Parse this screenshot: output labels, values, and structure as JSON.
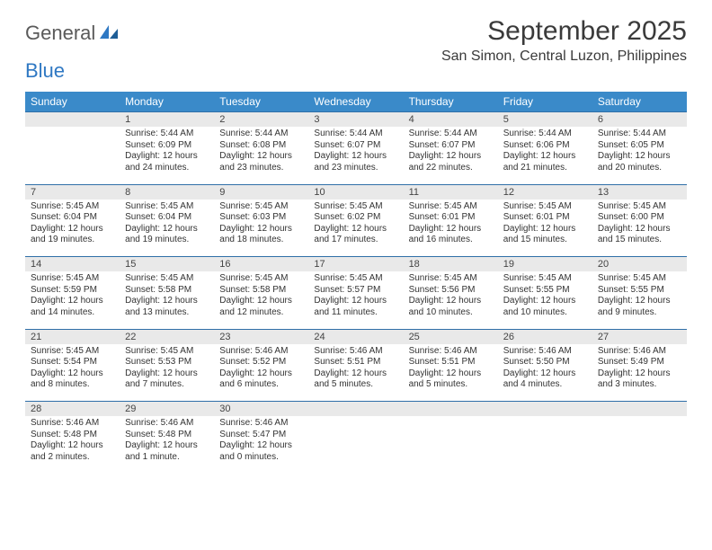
{
  "brand": {
    "general": "General",
    "blue": "Blue"
  },
  "title": "September 2025",
  "location": "San Simon, Central Luzon, Philippines",
  "colors": {
    "header_bg": "#3a8ac9",
    "header_text": "#ffffff",
    "daynum_bg": "#e9e9e9",
    "daynum_border": "#2f6fa8",
    "logo_blue": "#2f78c3",
    "logo_gray": "#5a5a5a",
    "page_bg": "#ffffff",
    "body_text": "#333333"
  },
  "day_headers": [
    "Sunday",
    "Monday",
    "Tuesday",
    "Wednesday",
    "Thursday",
    "Friday",
    "Saturday"
  ],
  "weeks": [
    {
      "days": [
        {
          "n": "",
          "lines": [
            "",
            "",
            "",
            ""
          ]
        },
        {
          "n": "1",
          "lines": [
            "Sunrise: 5:44 AM",
            "Sunset: 6:09 PM",
            "Daylight: 12 hours",
            "and 24 minutes."
          ]
        },
        {
          "n": "2",
          "lines": [
            "Sunrise: 5:44 AM",
            "Sunset: 6:08 PM",
            "Daylight: 12 hours",
            "and 23 minutes."
          ]
        },
        {
          "n": "3",
          "lines": [
            "Sunrise: 5:44 AM",
            "Sunset: 6:07 PM",
            "Daylight: 12 hours",
            "and 23 minutes."
          ]
        },
        {
          "n": "4",
          "lines": [
            "Sunrise: 5:44 AM",
            "Sunset: 6:07 PM",
            "Daylight: 12 hours",
            "and 22 minutes."
          ]
        },
        {
          "n": "5",
          "lines": [
            "Sunrise: 5:44 AM",
            "Sunset: 6:06 PM",
            "Daylight: 12 hours",
            "and 21 minutes."
          ]
        },
        {
          "n": "6",
          "lines": [
            "Sunrise: 5:44 AM",
            "Sunset: 6:05 PM",
            "Daylight: 12 hours",
            "and 20 minutes."
          ]
        }
      ]
    },
    {
      "days": [
        {
          "n": "7",
          "lines": [
            "Sunrise: 5:45 AM",
            "Sunset: 6:04 PM",
            "Daylight: 12 hours",
            "and 19 minutes."
          ]
        },
        {
          "n": "8",
          "lines": [
            "Sunrise: 5:45 AM",
            "Sunset: 6:04 PM",
            "Daylight: 12 hours",
            "and 19 minutes."
          ]
        },
        {
          "n": "9",
          "lines": [
            "Sunrise: 5:45 AM",
            "Sunset: 6:03 PM",
            "Daylight: 12 hours",
            "and 18 minutes."
          ]
        },
        {
          "n": "10",
          "lines": [
            "Sunrise: 5:45 AM",
            "Sunset: 6:02 PM",
            "Daylight: 12 hours",
            "and 17 minutes."
          ]
        },
        {
          "n": "11",
          "lines": [
            "Sunrise: 5:45 AM",
            "Sunset: 6:01 PM",
            "Daylight: 12 hours",
            "and 16 minutes."
          ]
        },
        {
          "n": "12",
          "lines": [
            "Sunrise: 5:45 AM",
            "Sunset: 6:01 PM",
            "Daylight: 12 hours",
            "and 15 minutes."
          ]
        },
        {
          "n": "13",
          "lines": [
            "Sunrise: 5:45 AM",
            "Sunset: 6:00 PM",
            "Daylight: 12 hours",
            "and 15 minutes."
          ]
        }
      ]
    },
    {
      "days": [
        {
          "n": "14",
          "lines": [
            "Sunrise: 5:45 AM",
            "Sunset: 5:59 PM",
            "Daylight: 12 hours",
            "and 14 minutes."
          ]
        },
        {
          "n": "15",
          "lines": [
            "Sunrise: 5:45 AM",
            "Sunset: 5:58 PM",
            "Daylight: 12 hours",
            "and 13 minutes."
          ]
        },
        {
          "n": "16",
          "lines": [
            "Sunrise: 5:45 AM",
            "Sunset: 5:58 PM",
            "Daylight: 12 hours",
            "and 12 minutes."
          ]
        },
        {
          "n": "17",
          "lines": [
            "Sunrise: 5:45 AM",
            "Sunset: 5:57 PM",
            "Daylight: 12 hours",
            "and 11 minutes."
          ]
        },
        {
          "n": "18",
          "lines": [
            "Sunrise: 5:45 AM",
            "Sunset: 5:56 PM",
            "Daylight: 12 hours",
            "and 10 minutes."
          ]
        },
        {
          "n": "19",
          "lines": [
            "Sunrise: 5:45 AM",
            "Sunset: 5:55 PM",
            "Daylight: 12 hours",
            "and 10 minutes."
          ]
        },
        {
          "n": "20",
          "lines": [
            "Sunrise: 5:45 AM",
            "Sunset: 5:55 PM",
            "Daylight: 12 hours",
            "and 9 minutes."
          ]
        }
      ]
    },
    {
      "days": [
        {
          "n": "21",
          "lines": [
            "Sunrise: 5:45 AM",
            "Sunset: 5:54 PM",
            "Daylight: 12 hours",
            "and 8 minutes."
          ]
        },
        {
          "n": "22",
          "lines": [
            "Sunrise: 5:45 AM",
            "Sunset: 5:53 PM",
            "Daylight: 12 hours",
            "and 7 minutes."
          ]
        },
        {
          "n": "23",
          "lines": [
            "Sunrise: 5:46 AM",
            "Sunset: 5:52 PM",
            "Daylight: 12 hours",
            "and 6 minutes."
          ]
        },
        {
          "n": "24",
          "lines": [
            "Sunrise: 5:46 AM",
            "Sunset: 5:51 PM",
            "Daylight: 12 hours",
            "and 5 minutes."
          ]
        },
        {
          "n": "25",
          "lines": [
            "Sunrise: 5:46 AM",
            "Sunset: 5:51 PM",
            "Daylight: 12 hours",
            "and 5 minutes."
          ]
        },
        {
          "n": "26",
          "lines": [
            "Sunrise: 5:46 AM",
            "Sunset: 5:50 PM",
            "Daylight: 12 hours",
            "and 4 minutes."
          ]
        },
        {
          "n": "27",
          "lines": [
            "Sunrise: 5:46 AM",
            "Sunset: 5:49 PM",
            "Daylight: 12 hours",
            "and 3 minutes."
          ]
        }
      ]
    },
    {
      "days": [
        {
          "n": "28",
          "lines": [
            "Sunrise: 5:46 AM",
            "Sunset: 5:48 PM",
            "Daylight: 12 hours",
            "and 2 minutes."
          ]
        },
        {
          "n": "29",
          "lines": [
            "Sunrise: 5:46 AM",
            "Sunset: 5:48 PM",
            "Daylight: 12 hours",
            "and 1 minute."
          ]
        },
        {
          "n": "30",
          "lines": [
            "Sunrise: 5:46 AM",
            "Sunset: 5:47 PM",
            "Daylight: 12 hours",
            "and 0 minutes."
          ]
        },
        {
          "n": "",
          "lines": [
            "",
            "",
            "",
            ""
          ]
        },
        {
          "n": "",
          "lines": [
            "",
            "",
            "",
            ""
          ]
        },
        {
          "n": "",
          "lines": [
            "",
            "",
            "",
            ""
          ]
        },
        {
          "n": "",
          "lines": [
            "",
            "",
            "",
            ""
          ]
        }
      ]
    }
  ]
}
